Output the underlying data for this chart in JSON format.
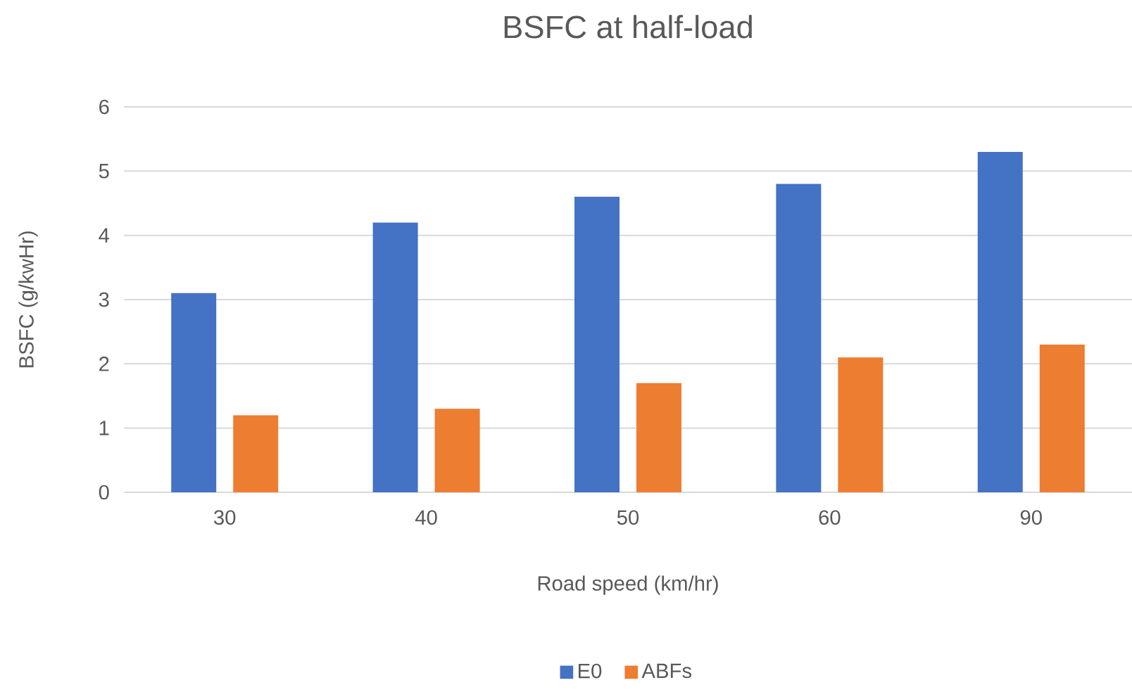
{
  "chart_data": {
    "type": "bar",
    "title": "BSFC at half-load",
    "xlabel": "Road speed (km/hr)",
    "ylabel": "BSFC (g/kwHr)",
    "categories": [
      "30",
      "40",
      "50",
      "60",
      "90"
    ],
    "series": [
      {
        "name": "E0",
        "color": "#4472c4",
        "values": [
          3.1,
          4.2,
          4.6,
          4.8,
          5.3
        ]
      },
      {
        "name": "ABFs",
        "color": "#ed7d31",
        "values": [
          1.2,
          1.3,
          1.7,
          2.1,
          2.3
        ]
      }
    ],
    "ylim": [
      0,
      6
    ],
    "yticks": [
      0,
      1,
      2,
      3,
      4,
      5,
      6
    ],
    "grid": "y",
    "legend": "bottom"
  }
}
